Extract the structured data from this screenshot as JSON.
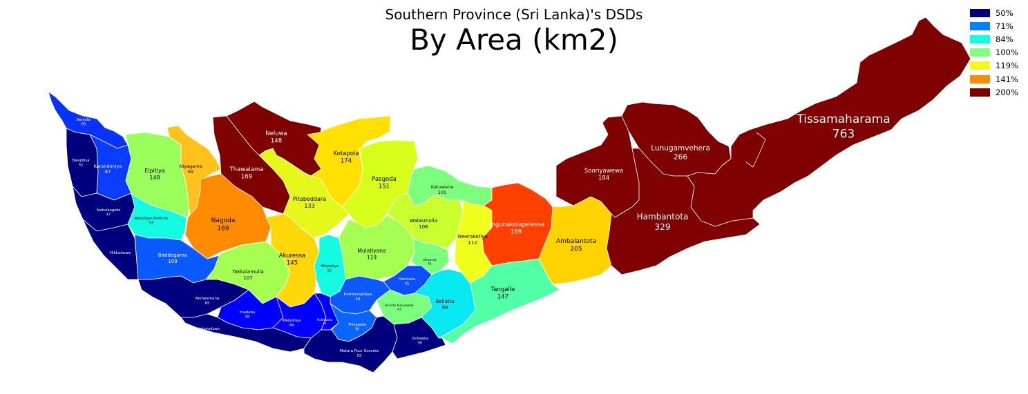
{
  "subtitle": "Southern Province (Sri Lanka)'s DSDs",
  "title": "By Area (km2)",
  "legend": [
    {
      "label": "50%",
      "color": "#00007f"
    },
    {
      "label": "71%",
      "color": "#007fff"
    },
    {
      "label": "84%",
      "color": "#13fce2"
    },
    {
      "label": "100%",
      "color": "#80ff80"
    },
    {
      "label": "119%",
      "color": "#f3f71c"
    },
    {
      "label": "141%",
      "color": "#ff8c00"
    },
    {
      "label": "200%",
      "color": "#7f0000"
    }
  ],
  "districts": [
    {
      "id": "bentota",
      "name": "Bentota",
      "value": "69",
      "color": "#0a32ff",
      "text": "#ffffff"
    },
    {
      "id": "balapitiya",
      "name": "Balapitiya",
      "value": "52",
      "color": "#00007f",
      "text": "#ffffff"
    },
    {
      "id": "karandeniya",
      "name": "Karandeniya",
      "value": "87",
      "color": "#0a3cff",
      "text": "#ffffff"
    },
    {
      "id": "elpitiya",
      "name": "Elpitiya",
      "value": "148",
      "color": "#9aff5a",
      "text": "#000000"
    },
    {
      "id": "niyagama",
      "name": "Niyagama",
      "value": "99",
      "color": "#ffc21a",
      "text": "#000000"
    },
    {
      "id": "thawalama",
      "name": "Thawalama",
      "value": "169",
      "color": "#7f0000",
      "text": "#ffffff"
    },
    {
      "id": "neluwa",
      "name": "Neluwa",
      "value": "148",
      "color": "#7f0000",
      "text": "#ffffff"
    },
    {
      "id": "kotapola",
      "name": "Kotapola",
      "value": "174",
      "color": "#ffe000",
      "text": "#000000"
    },
    {
      "id": "pasgoda",
      "name": "Pasgoda",
      "value": "151",
      "color": "#d8ff1a",
      "text": "#000000"
    },
    {
      "id": "katuwana",
      "name": "Katuwana",
      "value": "101",
      "color": "#7cff7c",
      "text": "#000000"
    },
    {
      "id": "ambalangoda",
      "name": "Ambalangoda",
      "value": "47",
      "color": "#00007f",
      "text": "#ffffff"
    },
    {
      "id": "welivitiya",
      "name": "Welivitiya-Divithura",
      "value": "53",
      "color": "#13fce2",
      "text": "#000000"
    },
    {
      "id": "nagoda",
      "name": "Nagoda",
      "value": "169",
      "color": "#ff8c00",
      "text": "#000000"
    },
    {
      "id": "pitabeddara",
      "name": "Pitabeddara",
      "value": "133",
      "color": "#e6f71c",
      "text": "#000000"
    },
    {
      "id": "walasmulla",
      "name": "Walasmulla",
      "value": "106",
      "color": "#c9ff2e",
      "text": "#000000"
    },
    {
      "id": "weeraketiya",
      "name": "Weeraketiya",
      "value": "112",
      "color": "#f0ff1c",
      "text": "#000000"
    },
    {
      "id": "angunakolapelessa",
      "name": "Angunakolapelessa",
      "value": "169",
      "color": "#ff4000",
      "text": "#ffffff"
    },
    {
      "id": "sooriyawewa",
      "name": "Sooriyawewa",
      "value": "184",
      "color": "#7f0000",
      "text": "#ffffff"
    },
    {
      "id": "lunugamvehera",
      "name": "Lunugamvehera",
      "value": "266",
      "color": "#7f0000",
      "text": "#ffffff"
    },
    {
      "id": "tissamaharama",
      "name": "Tissamaharama",
      "value": "763",
      "color": "#7f0000",
      "text": "#ffffff"
    },
    {
      "id": "hambantota",
      "name": "Hambantota",
      "value": "329",
      "color": "#7f0000",
      "text": "#ffffff"
    },
    {
      "id": "ambalantota",
      "name": "Ambalantota",
      "value": "205",
      "color": "#ffd200",
      "text": "#000000"
    },
    {
      "id": "hikkaduwa",
      "name": "Hikkaduwa",
      "value": "",
      "color": "#00007f",
      "text": "#ffffff"
    },
    {
      "id": "baddegama",
      "name": "Baddegama",
      "value": "109",
      "color": "#0a5aff",
      "text": "#ffffff"
    },
    {
      "id": "yakkalamulla",
      "name": "Yakkalamulla",
      "value": "107",
      "color": "#a6ff50",
      "text": "#000000"
    },
    {
      "id": "akuressa",
      "name": "Akuressa",
      "value": "145",
      "color": "#ffd80a",
      "text": "#000000"
    },
    {
      "id": "athuraliya",
      "name": "Athuraliya",
      "value": "59",
      "color": "#13fce2",
      "text": "#000000"
    },
    {
      "id": "mulatiyana",
      "name": "Mulatiyana",
      "value": "119",
      "color": "#a6ff50",
      "text": "#000000"
    },
    {
      "id": "okewela",
      "name": "Okewela",
      "value": "41",
      "color": "#7cff7c",
      "text": "#000000"
    },
    {
      "id": "hakmana",
      "name": "Hakmana",
      "value": "45",
      "color": "#0a50ff",
      "text": "#ffffff"
    },
    {
      "id": "kamburupitiya",
      "name": "Kamburupitiya",
      "value": "59",
      "color": "#0a5aff",
      "text": "#ffffff"
    },
    {
      "id": "kirinda",
      "name": "Kirinda Puhulwella",
      "value": "43",
      "color": "#7cff7c",
      "text": "#000000"
    },
    {
      "id": "beliatta",
      "name": "Beliatta",
      "value": "99",
      "color": "#08e8f0",
      "text": "#000000"
    },
    {
      "id": "tangalle",
      "name": "Tangalle",
      "value": "147",
      "color": "#50ffa6",
      "text": "#000000"
    },
    {
      "id": "akmeemana",
      "name": "Akmeemana",
      "value": "65",
      "color": "#00007f",
      "text": "#ffffff"
    },
    {
      "id": "imaduwa",
      "name": "Imaduwa",
      "value": "58",
      "color": "#0000ff",
      "text": "#ffffff"
    },
    {
      "id": "welipitiya",
      "name": "Welipitiya",
      "value": "66",
      "color": "#0000ff",
      "text": "#ffffff"
    },
    {
      "id": "malimbada",
      "name": "Malimbada",
      "value": "43",
      "color": "#0000ff",
      "text": "#ffffff"
    },
    {
      "id": "thihagoda",
      "name": "Thihagoda",
      "value": "50",
      "color": "#0a64ff",
      "text": "#ffffff"
    },
    {
      "id": "habaraduwa",
      "name": "Habaraduwa",
      "value": "47",
      "color": "#00007f",
      "text": "#ffffff"
    },
    {
      "id": "matara",
      "name": "Matara Four Gravets",
      "value": "55",
      "color": "#00007f",
      "text": "#ffffff"
    },
    {
      "id": "dickwella",
      "name": "Dickwella",
      "value": "50",
      "color": "#00007f",
      "text": "#ffffff"
    }
  ]
}
